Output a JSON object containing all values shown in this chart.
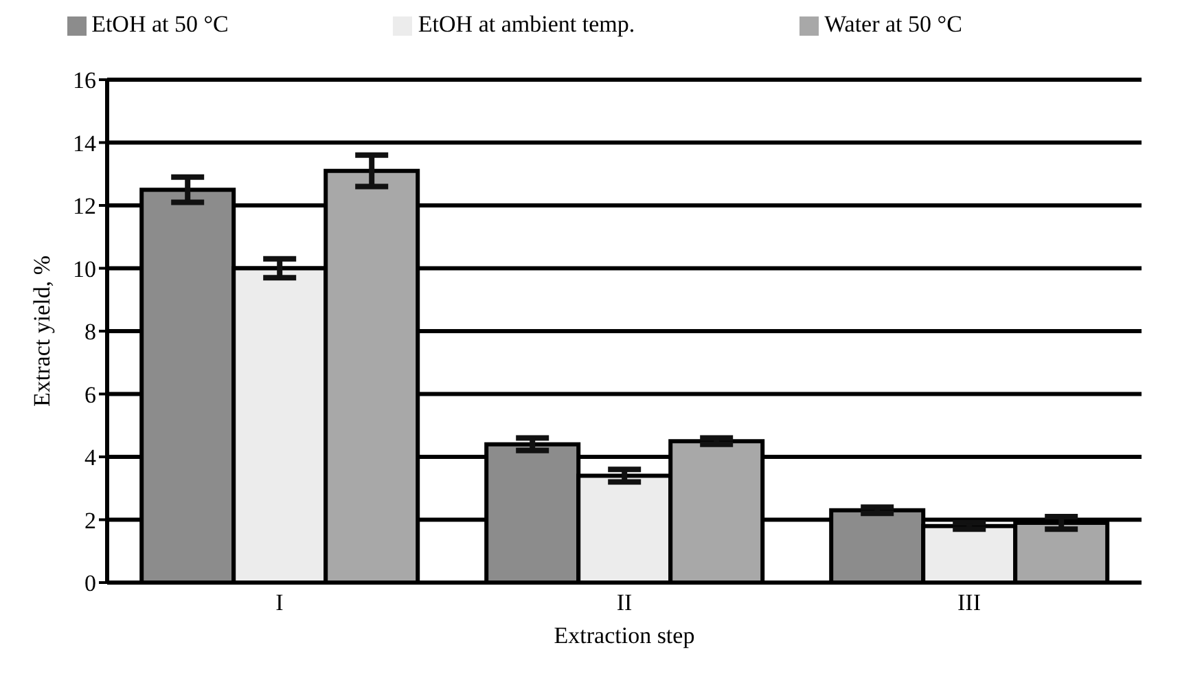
{
  "chart_data": {
    "type": "bar",
    "xlabel": "Extraction step",
    "ylabel": "Extract yield, %",
    "categories": [
      "I",
      "II",
      "III"
    ],
    "series": [
      {
        "name": "EtOH at 50 °C",
        "color": "#8c8c8c",
        "values": [
          12.5,
          4.4,
          2.3
        ],
        "errors": [
          0.4,
          0.2,
          0.1
        ]
      },
      {
        "name": "EtOH at ambient temp.",
        "color": "#ececec",
        "values": [
          10.0,
          3.4,
          1.8
        ],
        "errors": [
          0.3,
          0.2,
          0.1
        ]
      },
      {
        "name": "Water at 50 °C",
        "color": "#a8a8a8",
        "values": [
          13.1,
          4.5,
          1.9
        ],
        "errors": [
          0.5,
          0.1,
          0.2
        ]
      }
    ],
    "ylim": [
      0,
      16
    ],
    "yticks": [
      0,
      2,
      4,
      6,
      8,
      10,
      12,
      14,
      16
    ],
    "grid": "y",
    "legend": "top"
  }
}
